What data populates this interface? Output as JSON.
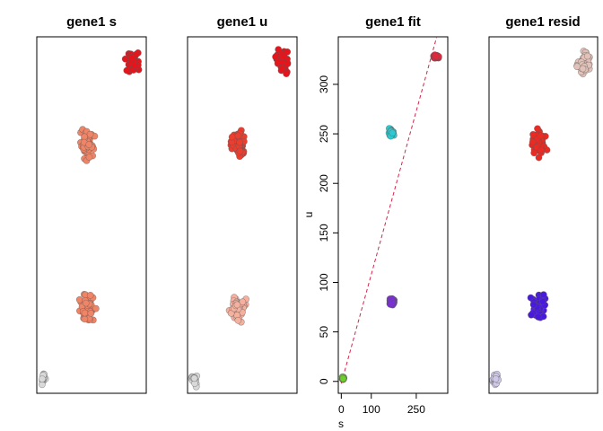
{
  "chart_data": [
    {
      "type": "scatter",
      "title": "gene1 s",
      "xlabel": "",
      "ylabel": "",
      "axes_shown": false,
      "clusters": [
        {
          "cx": 0.06,
          "cy": 0.04,
          "n": 18,
          "sx": 0.04,
          "sy": 0.025,
          "fill": "#d9d9d9"
        },
        {
          "cx": 0.46,
          "cy": 0.24,
          "n": 60,
          "sx": 0.09,
          "sy": 0.05,
          "fill": "#f08466"
        },
        {
          "cx": 0.46,
          "cy": 0.7,
          "n": 60,
          "sx": 0.09,
          "sy": 0.05,
          "fill": "#f08466"
        },
        {
          "cx": 0.87,
          "cy": 0.93,
          "n": 45,
          "sx": 0.08,
          "sy": 0.04,
          "fill": "#e8141b"
        }
      ]
    },
    {
      "type": "scatter",
      "title": "gene1 u",
      "xlabel": "",
      "ylabel": "",
      "axes_shown": false,
      "clusters": [
        {
          "cx": 0.06,
          "cy": 0.04,
          "n": 18,
          "sx": 0.04,
          "sy": 0.025,
          "fill": "#d9d9d9"
        },
        {
          "cx": 0.46,
          "cy": 0.24,
          "n": 60,
          "sx": 0.09,
          "sy": 0.05,
          "fill": "#f6b09e"
        },
        {
          "cx": 0.46,
          "cy": 0.7,
          "n": 60,
          "sx": 0.09,
          "sy": 0.05,
          "fill": "#ec3d2e"
        },
        {
          "cx": 0.87,
          "cy": 0.93,
          "n": 45,
          "sx": 0.08,
          "sy": 0.04,
          "fill": "#e8141b"
        }
      ]
    },
    {
      "type": "scatter",
      "title": "gene1 fit",
      "xlabel": "s",
      "ylabel": "u",
      "xlim": [
        -10,
        355
      ],
      "ylim": [
        -12,
        348
      ],
      "xticks": [
        0,
        100,
        250
      ],
      "yticks": [
        0,
        50,
        100,
        150,
        200,
        250,
        300
      ],
      "fit_line": {
        "slope": 1.1,
        "intercept": -2,
        "color": "#d6244a"
      },
      "clusters": [
        {
          "cx": 6,
          "cy": 3,
          "n": 25,
          "sx": 4,
          "sy": 2.5,
          "fill": "#6ccf2a"
        },
        {
          "cx": 168,
          "cy": 80,
          "n": 45,
          "sx": 12,
          "sy": 4.5,
          "fill": "#7b2fd6"
        },
        {
          "cx": 165,
          "cy": 251,
          "n": 30,
          "sx": 12,
          "sy": 6,
          "fill": "#2dc9d1"
        },
        {
          "cx": 316,
          "cy": 328,
          "n": 40,
          "sx": 14,
          "sy": 2.5,
          "fill": "#e2283c"
        }
      ]
    },
    {
      "type": "scatter",
      "title": "gene1 resid",
      "xlabel": "",
      "ylabel": "",
      "axes_shown": false,
      "clusters": [
        {
          "cx": 0.06,
          "cy": 0.04,
          "n": 18,
          "sx": 0.04,
          "sy": 0.025,
          "fill": "#cfc8e6"
        },
        {
          "cx": 0.46,
          "cy": 0.24,
          "n": 60,
          "sx": 0.09,
          "sy": 0.05,
          "fill": "#4a19e0"
        },
        {
          "cx": 0.46,
          "cy": 0.7,
          "n": 60,
          "sx": 0.09,
          "sy": 0.05,
          "fill": "#ec2a24"
        },
        {
          "cx": 0.87,
          "cy": 0.93,
          "n": 45,
          "sx": 0.08,
          "sy": 0.04,
          "fill": "#e2c2b8"
        }
      ]
    }
  ]
}
